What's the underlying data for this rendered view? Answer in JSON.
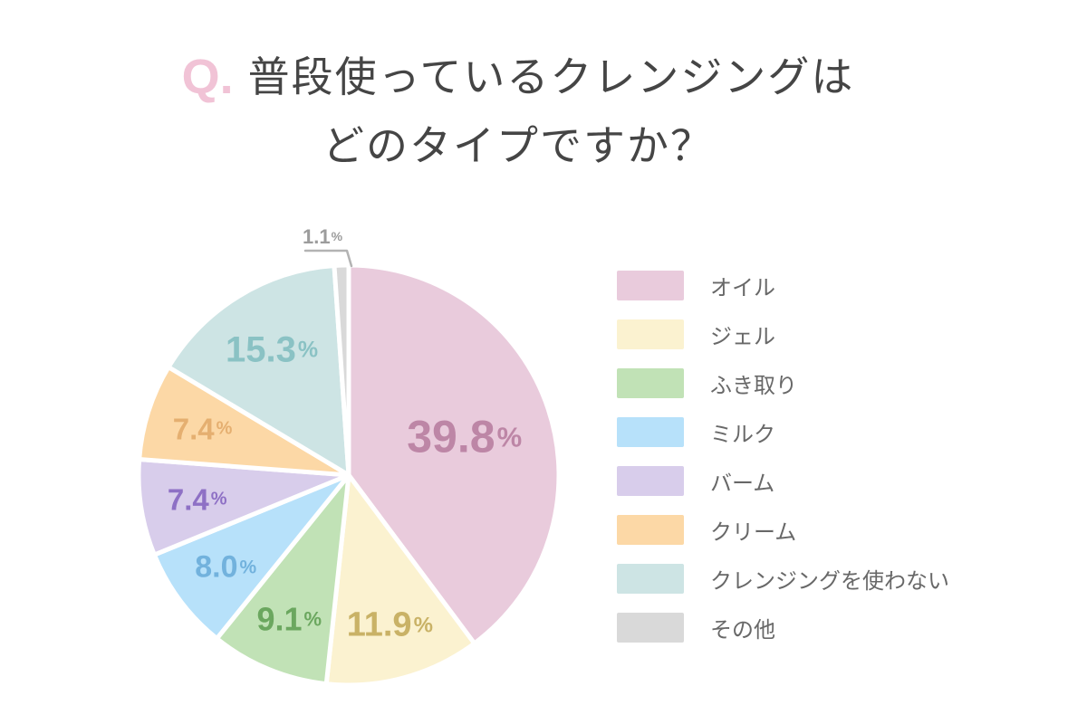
{
  "title": {
    "prefix": "Q.",
    "line1": "普段使っているクレンジングは",
    "line2": "どのタイプですか？"
  },
  "chart_data": {
    "type": "pie",
    "title": "普段使っているクレンジングはどのタイプですか？",
    "unit": "%",
    "start_angle_deg": 0,
    "direction": "clockwise",
    "legend_position": "right",
    "slices": [
      {
        "label": "オイル",
        "value": 39.8,
        "color": "#e9cbdc",
        "label_color": "#bd86a6"
      },
      {
        "label": "ジェル",
        "value": 11.9,
        "color": "#fbf2d0",
        "label_color": "#c9b266"
      },
      {
        "label": "ふき取り",
        "value": 9.1,
        "color": "#c1e2b6",
        "label_color": "#6ba75f"
      },
      {
        "label": "ミルク",
        "value": 8.0,
        "color": "#b7e1fa",
        "label_color": "#72b2dd"
      },
      {
        "label": "バーム",
        "value": 7.4,
        "color": "#d8cdeb",
        "label_color": "#8e70c5"
      },
      {
        "label": "クリーム",
        "value": 7.4,
        "color": "#fcd8a6",
        "label_color": "#e5af70"
      },
      {
        "label": "クレンジングを使わない",
        "value": 15.3,
        "color": "#cde4e4",
        "label_color": "#8ac2c4"
      },
      {
        "label": "その他",
        "value": 1.1,
        "color": "#d9d9d9",
        "label_color": "#9c9c9c"
      }
    ],
    "colors": {
      "title_text": "#454545",
      "title_prefix": "#f1c3d6",
      "legend_text": "#686868",
      "leader_line": "#b3b3b3",
      "background": "#ffffff"
    }
  }
}
